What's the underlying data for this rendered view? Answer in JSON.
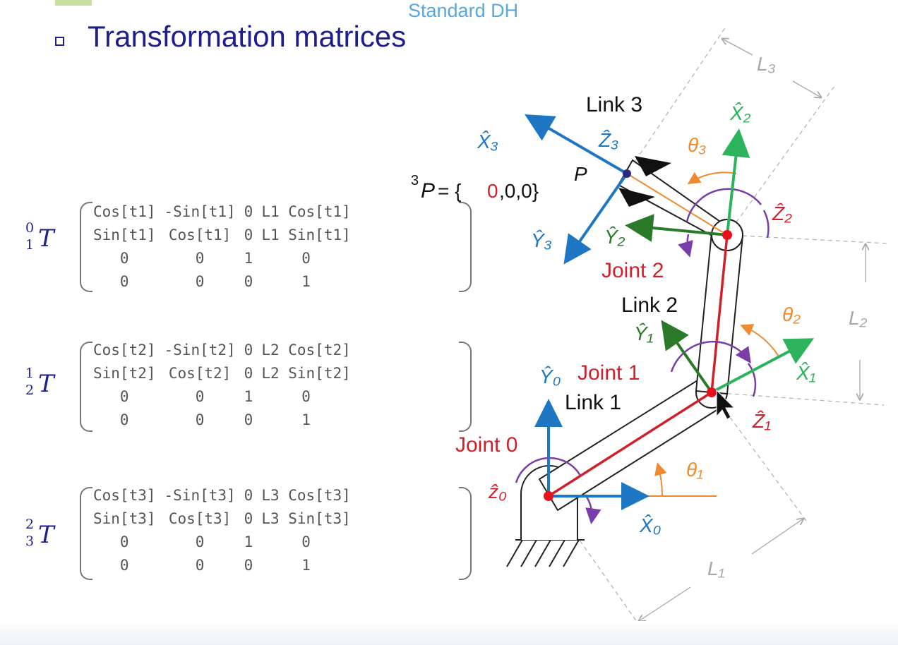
{
  "header": {
    "tag": "Standard DH",
    "title": "Transformation matrices"
  },
  "matrices": [
    {
      "sup": "0",
      "sub": "1",
      "symbol": "T",
      "rows": [
        [
          "Cos[t1]",
          "-Sin[t1]",
          "0",
          "L1 Cos[t1]"
        ],
        [
          "Sin[t1]",
          "Cos[t1]",
          "0",
          "L1 Sin[t1]"
        ],
        [
          "0",
          "0",
          "1",
          "0"
        ],
        [
          "0",
          "0",
          "0",
          "1"
        ]
      ]
    },
    {
      "sup": "1",
      "sub": "2",
      "symbol": "T",
      "rows": [
        [
          "Cos[t2]",
          "-Sin[t2]",
          "0",
          "L2 Cos[t2]"
        ],
        [
          "Sin[t2]",
          "Cos[t2]",
          "0",
          "L2 Sin[t2]"
        ],
        [
          "0",
          "0",
          "1",
          "0"
        ],
        [
          "0",
          "0",
          "0",
          "1"
        ]
      ]
    },
    {
      "sup": "2",
      "sub": "3",
      "symbol": "T",
      "rows": [
        [
          "Cos[t3]",
          "-Sin[t3]",
          "0",
          "L3 Cos[t3]"
        ],
        [
          "Sin[t3]",
          "Cos[t3]",
          "0",
          "L3 Sin[t3]"
        ],
        [
          "0",
          "0",
          "1",
          "0"
        ],
        [
          "0",
          "0",
          "0",
          "1"
        ]
      ]
    }
  ],
  "diagram": {
    "point_eq_sup": "3",
    "point_eq_symbol": "P",
    "point_eq_prefix": " = {",
    "point_eq_red": "0",
    "point_eq_rest": ",0,0}",
    "point_label": "P",
    "link_labels": {
      "link1": "Link 1",
      "link2": "Link 2",
      "link3": "Link 3"
    },
    "joint_labels": {
      "joint0": "Joint 0",
      "joint1": "Joint 1",
      "joint2": "Joint 2"
    },
    "axes": {
      "x0": "X̂₀",
      "y0": "Ŷ₀",
      "z0": "ẑ₀",
      "x1": "X̂₁",
      "y1": "Ŷ₁",
      "z1": "Ẑ₁",
      "x2": "X̂₂",
      "y2": "Ŷ₂",
      "z2": "Ẑ₂",
      "x3": "X̂₃",
      "y3": "Ŷ₃",
      "z3": "Ẑ₃"
    },
    "angles": {
      "t1": "θ₁",
      "t2": "θ₂",
      "t3": "θ₃"
    },
    "lengths": {
      "l1": "L₁",
      "l2": "L₂",
      "l3": "L₃"
    },
    "colors": {
      "title": "#1e1e8c",
      "tag": "#5aa7de",
      "frame0": "#1f77c4",
      "frame1": "#2cb35c",
      "frame2": "#2cb35c",
      "frame3": "#1f77c4",
      "joint": "#d0202a",
      "angle": "#f08a30",
      "rotation": "#7a3ea8",
      "dimension": "#a8a8a8"
    }
  }
}
